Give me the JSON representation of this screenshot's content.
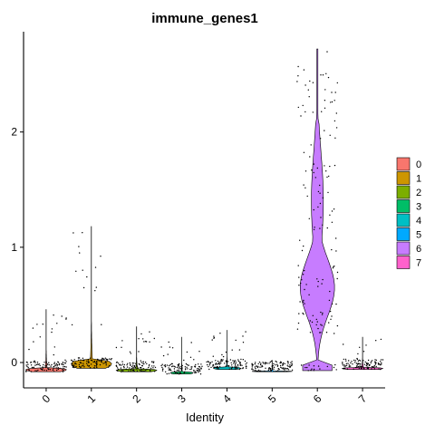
{
  "chart_data": {
    "type": "violin",
    "title": "immune_genes1",
    "xlabel": "Identity",
    "ylabel": "",
    "categories": [
      "0",
      "1",
      "2",
      "3",
      "4",
      "5",
      "6",
      "7"
    ],
    "yticks": [
      0,
      1,
      2
    ],
    "ylim": [
      -0.22,
      2.87
    ],
    "legend_position": "right",
    "legend": [
      {
        "label": "0",
        "color": "#F8766D"
      },
      {
        "label": "1",
        "color": "#CD9600"
      },
      {
        "label": "2",
        "color": "#7CAE00"
      },
      {
        "label": "3",
        "color": "#00BE67"
      },
      {
        "label": "4",
        "color": "#00BFC4"
      },
      {
        "label": "5",
        "color": "#00A9FF"
      },
      {
        "label": "6",
        "color": "#C77CFF"
      },
      {
        "label": "7",
        "color": "#FF61CC"
      }
    ],
    "series": [
      {
        "name": "0",
        "y_min": -0.08,
        "y_max": 0.46,
        "max_halfwidth": 0.45
      },
      {
        "name": "1",
        "y_min": -0.05,
        "y_max": 1.18,
        "max_halfwidth": 0.45
      },
      {
        "name": "2",
        "y_min": -0.08,
        "y_max": 0.31,
        "max_halfwidth": 0.45
      },
      {
        "name": "3",
        "y_min": -0.1,
        "y_max": 0.22,
        "max_halfwidth": 0.25
      },
      {
        "name": "4",
        "y_min": -0.06,
        "y_max": 0.28,
        "max_halfwidth": 0.3
      },
      {
        "name": "5",
        "y_min": -0.08,
        "y_max": 0.02,
        "max_halfwidth": 0.45
      },
      {
        "name": "6",
        "y_min": -0.07,
        "y_max": 2.72,
        "max_halfwidth": 0.38
      },
      {
        "name": "7",
        "y_min": -0.06,
        "y_max": 0.22,
        "max_halfwidth": 0.45
      }
    ]
  }
}
